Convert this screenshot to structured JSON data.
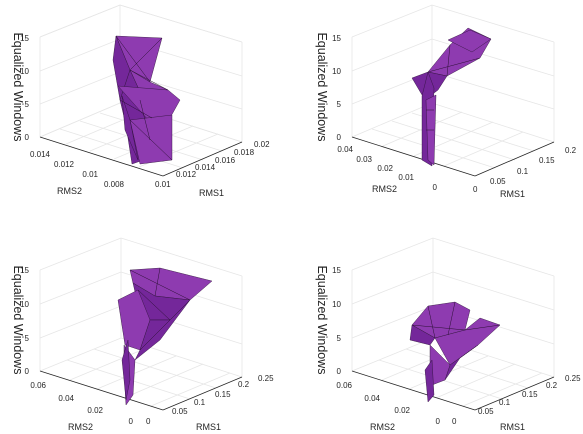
{
  "chart_data": [
    {
      "type": "surface3d",
      "zlabel": "Equalized Windows",
      "xlabel": "RMS1",
      "ylabel": "RMS2",
      "xticks": [
        "0.01",
        "0.012",
        "0.014",
        "0.016",
        "0.018",
        "0.02"
      ],
      "yticks": [
        "0.008",
        "0.01",
        "0.012",
        "0.014"
      ],
      "zticks": [
        "0",
        "5",
        "10",
        "15"
      ],
      "xlim": [
        0.009,
        0.02
      ],
      "ylim": [
        0.007,
        0.015
      ],
      "zlim": [
        0,
        15
      ],
      "color": "#8e3bb0"
    },
    {
      "type": "surface3d",
      "zlabel": "Equalized Windows",
      "xlabel": "RMS1",
      "ylabel": "RMS2",
      "xticks": [
        "0",
        "0.05",
        "0.1",
        "0.15",
        "0.2"
      ],
      "yticks": [
        "0",
        "0.01",
        "0.02",
        "0.03",
        "0.04"
      ],
      "zticks": [
        "0",
        "5",
        "10",
        "15"
      ],
      "xlim": [
        0,
        0.2
      ],
      "ylim": [
        0,
        0.045
      ],
      "zlim": [
        0,
        15
      ],
      "color": "#8e3bb0"
    },
    {
      "type": "surface3d",
      "zlabel": "Equalized Windows",
      "xlabel": "RMS1",
      "ylabel": "RMS2",
      "xticks": [
        "0",
        "0.05",
        "0.1",
        "0.15",
        "0.2",
        "0.25"
      ],
      "yticks": [
        "0",
        "0.02",
        "0.04",
        "0.06"
      ],
      "zticks": [
        "0",
        "5",
        "10",
        "15"
      ],
      "xlim": [
        0,
        0.25
      ],
      "ylim": [
        0,
        0.065
      ],
      "zlim": [
        0,
        15
      ],
      "color": "#8e3bb0"
    },
    {
      "type": "surface3d",
      "zlabel": "Equalized Windows",
      "xlabel": "RMS1",
      "ylabel": "RMS2",
      "xticks": [
        "0",
        "0.05",
        "0.1",
        "0.15",
        "0.2",
        "0.25"
      ],
      "yticks": [
        "0",
        "0.02",
        "0.04",
        "0.06"
      ],
      "zticks": [
        "0",
        "5",
        "10",
        "15"
      ],
      "xlim": [
        0,
        0.25
      ],
      "ylim": [
        0,
        0.065
      ],
      "zlim": [
        0,
        15
      ],
      "color": "#8e3bb0"
    }
  ]
}
